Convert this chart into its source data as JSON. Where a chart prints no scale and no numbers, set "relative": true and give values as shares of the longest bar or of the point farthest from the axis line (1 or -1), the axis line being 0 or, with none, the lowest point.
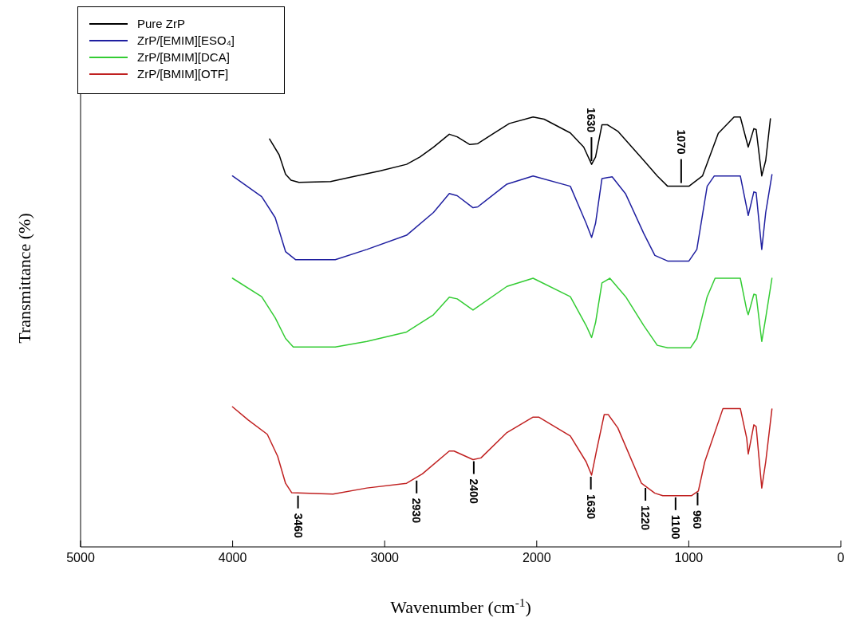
{
  "chart_data": {
    "type": "line",
    "relative": true,
    "xlabel": "Wavenumber (cm$^{-1}$)",
    "ylabel": "Transmittance (%)",
    "xlim": [
      5000,
      0
    ],
    "xticks": [
      5000,
      4000,
      3000,
      2000,
      1000,
      0
    ],
    "grid": false,
    "legend": "top left",
    "marker": "none",
    "line_style": "solid",
    "series": [
      {
        "name": "Pure ZrP",
        "color": "#000000",
        "x": [
          3757,
          3694,
          3652,
          3616,
          3564,
          3356,
          3200,
          3028,
          2856,
          2768,
          2679,
          2575,
          2523,
          2440,
          2388,
          2284,
          2180,
          2024,
          1951,
          1779,
          1691,
          1639,
          1613,
          1571,
          1535,
          1467,
          1296,
          1207,
          1139,
          999,
          910,
          806,
          702,
          661,
          609,
          572,
          557,
          520,
          494,
          463
        ],
        "values": [
          0.949,
          0.912,
          0.867,
          0.853,
          0.848,
          0.85,
          0.862,
          0.875,
          0.89,
          0.907,
          0.93,
          0.96,
          0.954,
          0.936,
          0.938,
          0.962,
          0.985,
          1,
          0.995,
          0.963,
          0.93,
          0.89,
          0.907,
          0.982,
          0.982,
          0.967,
          0.899,
          0.863,
          0.839,
          0.839,
          0.863,
          0.962,
          1,
          1,
          0.93,
          0.973,
          0.971,
          0.863,
          0.899,
          0.996
        ]
      },
      {
        "name": "ZrP/[EMIM][ESO₄]",
        "color": "#1f1fa0",
        "x": [
          4001,
          3809,
          3720,
          3652,
          3585,
          3325,
          3117,
          2856,
          2679,
          2575,
          2523,
          2419,
          2388,
          2196,
          2024,
          1779,
          1675,
          1639,
          1613,
          1571,
          1504,
          1415,
          1296,
          1223,
          1139,
          999,
          947,
          879,
          832,
          661,
          619,
          609,
          572,
          557,
          520,
          494,
          453
        ],
        "values": [
          0.863,
          0.815,
          0.766,
          0.687,
          0.668,
          0.668,
          0.692,
          0.725,
          0.778,
          0.822,
          0.817,
          0.789,
          0.791,
          0.844,
          0.863,
          0.839,
          0.753,
          0.72,
          0.753,
          0.857,
          0.861,
          0.821,
          0.729,
          0.678,
          0.665,
          0.665,
          0.692,
          0.839,
          0.863,
          0.863,
          0.789,
          0.771,
          0.826,
          0.824,
          0.692,
          0.778,
          0.866
        ]
      },
      {
        "name": "ZrP/[BMIM][DCA]",
        "color": "#33cc33",
        "x": [
          4001,
          3809,
          3720,
          3652,
          3601,
          3325,
          3117,
          2856,
          2679,
          2575,
          2523,
          2419,
          2196,
          2024,
          1779,
          1675,
          1639,
          1613,
          1571,
          1519,
          1415,
          1296,
          1207,
          1139,
          989,
          947,
          879,
          827,
          661,
          619,
          609,
          572,
          557,
          520,
          494,
          453
        ],
        "values": [
          0.625,
          0.582,
          0.533,
          0.485,
          0.465,
          0.465,
          0.478,
          0.5,
          0.54,
          0.581,
          0.577,
          0.551,
          0.606,
          0.625,
          0.582,
          0.515,
          0.487,
          0.522,
          0.614,
          0.625,
          0.582,
          0.515,
          0.469,
          0.463,
          0.463,
          0.485,
          0.582,
          0.625,
          0.625,
          0.551,
          0.54,
          0.588,
          0.586,
          0.478,
          0.533,
          0.625
        ]
      },
      {
        "name": "ZrP/[BMIM][OTF]",
        "color": "#c02020",
        "x": [
          4001,
          3897,
          3772,
          3704,
          3652,
          3611,
          3340,
          3117,
          2856,
          2752,
          2575,
          2544,
          2419,
          2367,
          2196,
          2024,
          1987,
          1779,
          1675,
          1639,
          1608,
          1556,
          1530,
          1467,
          1311,
          1223,
          1171,
          983,
          937,
          895,
          775,
          661,
          619,
          609,
          572,
          557,
          520,
          494,
          453
        ],
        "values": [
          0.326,
          0.295,
          0.262,
          0.211,
          0.148,
          0.126,
          0.123,
          0.137,
          0.148,
          0.17,
          0.223,
          0.223,
          0.203,
          0.207,
          0.266,
          0.302,
          0.302,
          0.258,
          0.198,
          0.167,
          0.222,
          0.308,
          0.308,
          0.277,
          0.148,
          0.125,
          0.119,
          0.119,
          0.13,
          0.198,
          0.322,
          0.322,
          0.253,
          0.216,
          0.284,
          0.28,
          0.137,
          0.198,
          0.321
        ]
      }
    ],
    "annotations": [
      {
        "text": "1630",
        "x": 1640,
        "y": 0.89
      },
      {
        "text": "1070",
        "x": 1050,
        "y": 0.839
      },
      {
        "text": "3460",
        "x": 3570,
        "y": 0.123
      },
      {
        "text": "2930",
        "x": 2790,
        "y": 0.158
      },
      {
        "text": "2400",
        "x": 2414,
        "y": 0.203
      },
      {
        "text": "1630",
        "x": 1644,
        "y": 0.167
      },
      {
        "text": "1220",
        "x": 1285,
        "y": 0.141
      },
      {
        "text": "1100",
        "x": 1087,
        "y": 0.119
      },
      {
        "text": "960",
        "x": 942,
        "y": 0.13
      }
    ]
  }
}
